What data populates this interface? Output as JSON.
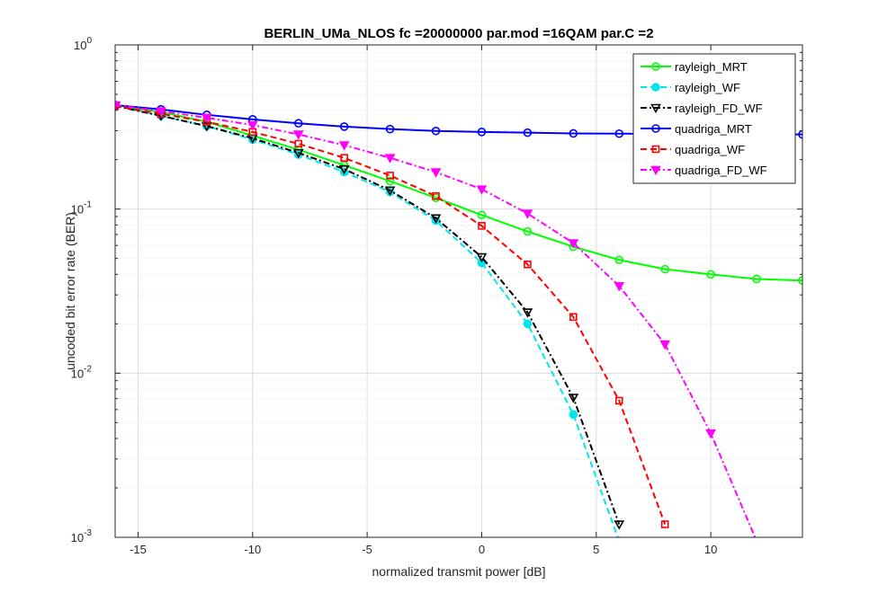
{
  "chart_data": {
    "type": "line",
    "title": "BERLIN_UMa_NLOS fc =20000000 par.mod =16QAM par.C =2",
    "xlabel": "normalized transmit power [dB]",
    "ylabel": "uncoded bit error rate (BER)",
    "xlim": [
      -16,
      14
    ],
    "ylim": [
      0.001,
      1
    ],
    "yscale": "log",
    "grid": true,
    "minor_grid": true,
    "legend_position": "top-right",
    "x_ticks": [
      -15,
      -10,
      -5,
      0,
      5,
      10
    ],
    "x_tick_labels": [
      "-15",
      "-10",
      "-5",
      "0",
      "5",
      "10"
    ],
    "y_ticks": [
      0.001,
      0.01,
      0.1,
      1
    ],
    "y_tick_labels": [
      {
        "base": "10",
        "exp": "-3"
      },
      {
        "base": "10",
        "exp": "-2"
      },
      {
        "base": "10",
        "exp": "-1"
      },
      {
        "base": "10",
        "exp": "0"
      }
    ],
    "series": [
      {
        "name": "rayleigh_MRT",
        "color": "#00ff00",
        "dash": "solid",
        "marker": "circle-open",
        "x": [
          -16,
          -14,
          -12,
          -10,
          -8,
          -6,
          -4,
          -2,
          0,
          2,
          4,
          6,
          8,
          10,
          12,
          14
        ],
        "y": [
          0.43,
          0.39,
          0.34,
          0.28,
          0.23,
          0.185,
          0.148,
          0.117,
          0.092,
          0.073,
          0.059,
          0.049,
          0.043,
          0.04,
          0.0375,
          0.0367
        ]
      },
      {
        "name": "rayleigh_WF",
        "color": "#00e5ee",
        "dash": "dashed",
        "marker": "circle-filled",
        "x": [
          -16,
          -14,
          -12,
          -10,
          -8,
          -6,
          -4,
          -2,
          0,
          2,
          4,
          6
        ],
        "y": [
          0.425,
          0.37,
          0.32,
          0.265,
          0.215,
          0.168,
          0.127,
          0.085,
          0.047,
          0.02,
          0.0056,
          0.00095
        ]
      },
      {
        "name": "rayleigh_FD_WF",
        "color": "#000000",
        "dash": "dashdot",
        "marker": "triangle-down-open",
        "x": [
          -16,
          -14,
          -12,
          -10,
          -8,
          -6,
          -4,
          -2,
          0,
          2,
          4,
          6
        ],
        "y": [
          0.425,
          0.37,
          0.32,
          0.27,
          0.22,
          0.175,
          0.13,
          0.088,
          0.051,
          0.0235,
          0.0071,
          0.0012
        ]
      },
      {
        "name": "quadriga_MRT",
        "color": "#0000ff",
        "dash": "solid",
        "marker": "circle-open",
        "x": [
          -16,
          -14,
          -12,
          -10,
          -8,
          -6,
          -4,
          -2,
          0,
          2,
          4,
          6,
          8,
          10,
          12,
          14
        ],
        "y": [
          0.43,
          0.405,
          0.375,
          0.352,
          0.333,
          0.318,
          0.307,
          0.299,
          0.295,
          0.292,
          0.289,
          0.288,
          0.287,
          0.286,
          0.286,
          0.285
        ]
      },
      {
        "name": "quadriga_WF",
        "color": "#ff0000",
        "dash": "dashed",
        "marker": "square-open",
        "x": [
          -16,
          -14,
          -12,
          -10,
          -8,
          -6,
          -4,
          -2,
          0,
          2,
          4,
          6,
          8
        ],
        "y": [
          0.425,
          0.38,
          0.34,
          0.295,
          0.25,
          0.205,
          0.16,
          0.12,
          0.079,
          0.046,
          0.022,
          0.0068,
          0.0012
        ]
      },
      {
        "name": "quadriga_FD_WF",
        "color": "#ff00ff",
        "dash": "dashdot",
        "marker": "triangle-down-filled",
        "x": [
          -16,
          -14,
          -12,
          -10,
          -8,
          -6,
          -4,
          -2,
          0,
          2,
          4,
          6,
          8,
          10,
          12
        ],
        "y": [
          0.43,
          0.395,
          0.36,
          0.325,
          0.285,
          0.245,
          0.205,
          0.168,
          0.132,
          0.094,
          0.062,
          0.034,
          0.015,
          0.0043,
          0.00095
        ]
      }
    ]
  }
}
